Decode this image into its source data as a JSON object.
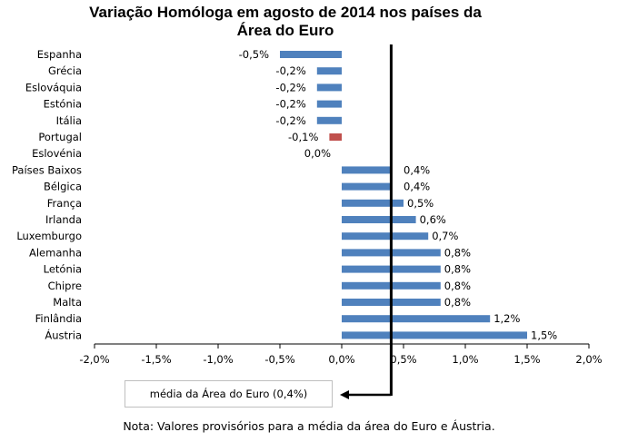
{
  "chart_data": {
    "type": "bar",
    "orientation": "horizontal",
    "title": "Variação Homóloga em agosto de 2014 nos países da Área do Euro",
    "title_lines": [
      "Variação Homóloga em agosto de 2014 nos países da",
      "Área do Euro"
    ],
    "categories": [
      "Espanha",
      "Grécia",
      "Eslováquia",
      "Estónia",
      "Itália",
      "Portugal",
      "Eslovénia",
      "Países Baixos",
      "Bélgica",
      "França",
      "Irlanda",
      "Luxemburgo",
      "Alemanha",
      "Letónia",
      "Chipre",
      "Malta",
      "Finlândia",
      "Áustria"
    ],
    "values": [
      -0.5,
      -0.2,
      -0.2,
      -0.2,
      -0.2,
      -0.1,
      0.0,
      0.4,
      0.4,
      0.5,
      0.6,
      0.7,
      0.8,
      0.8,
      0.8,
      0.8,
      1.2,
      1.5
    ],
    "value_labels": [
      "-0,5%",
      "-0,2%",
      "-0,2%",
      "-0,2%",
      "-0,2%",
      "-0,1%",
      "0,0%",
      "0,4%",
      "0,4%",
      "0,5%",
      "0,6%",
      "0,7%",
      "0,8%",
      "0,8%",
      "0,8%",
      "0,8%",
      "1,2%",
      "1,5%"
    ],
    "bar_color": "#4f81bd",
    "highlight_category": "Portugal",
    "highlight_color": "#c0504d",
    "xlim": [
      -2.0,
      2.0
    ],
    "x_ticks": [
      -2.0,
      -1.5,
      -1.0,
      -0.5,
      0.0,
      0.5,
      1.0,
      1.5,
      2.0
    ],
    "x_tick_labels": [
      "-2,0%",
      "-1,5%",
      "-1,0%",
      "-0,5%",
      "0,0%",
      "0,5%",
      "1,0%",
      "1,5%",
      "2,0%"
    ],
    "reference_line": {
      "value": 0.4,
      "label": "média da Área do Euro (0,4%)"
    },
    "note": "Nota: Valores provisórios para a média da área do Euro e Áustria."
  }
}
